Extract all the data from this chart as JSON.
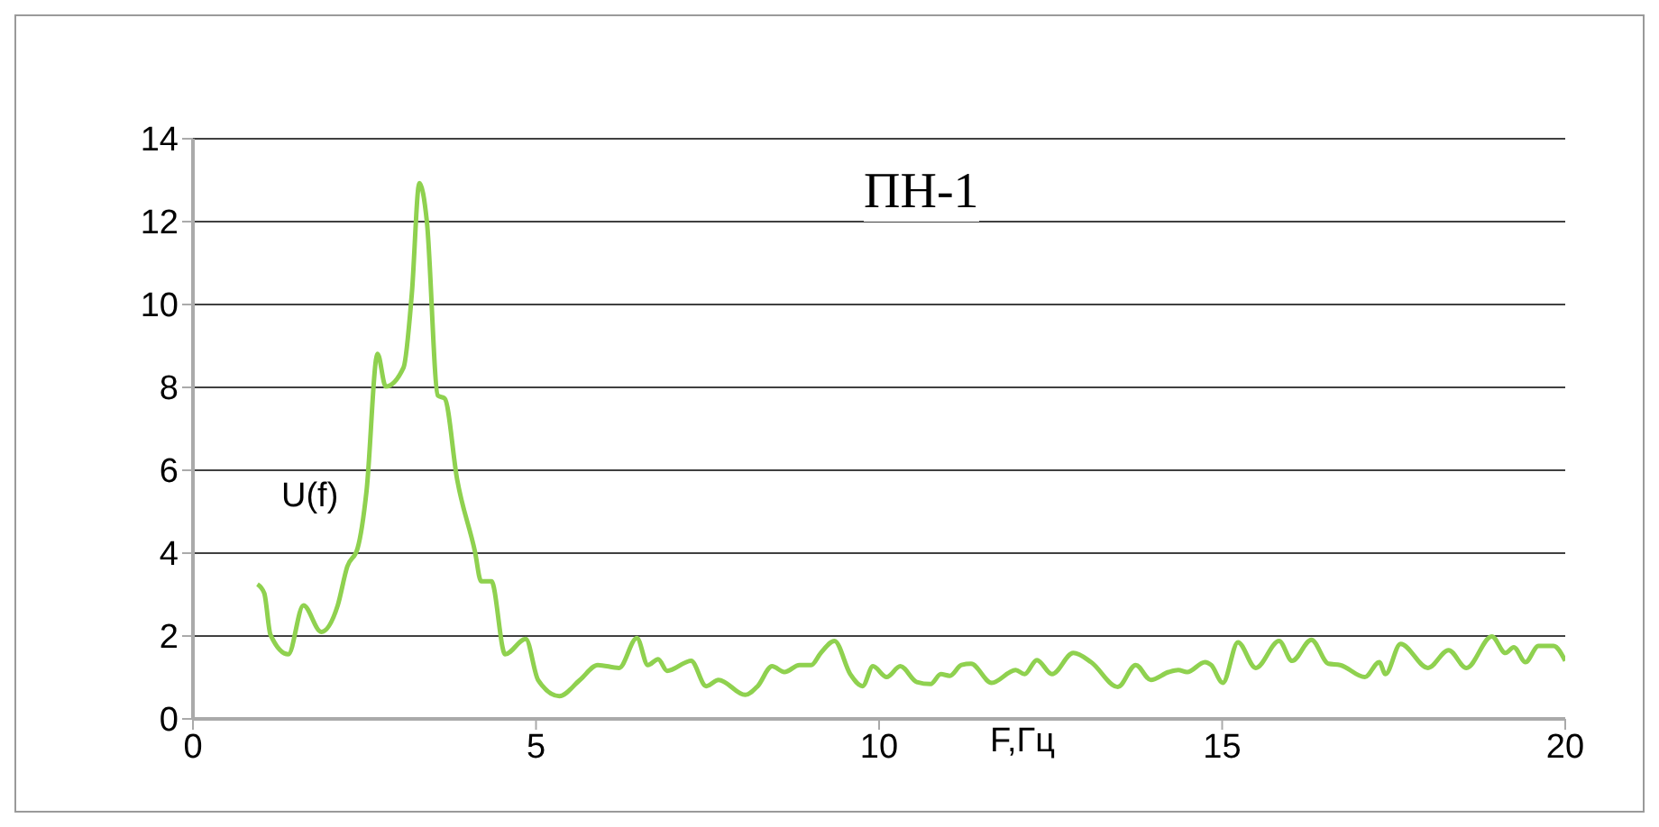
{
  "chart_data": {
    "type": "line",
    "title": "ПН-1",
    "xlabel": "F,Гц",
    "ylabel": "U(f)",
    "x": [
      0.94,
      1.04,
      1.13,
      1.39,
      1.61,
      1.87,
      2.11,
      2.25,
      2.4,
      2.53,
      2.69,
      2.81,
      3.07,
      3.19,
      3.3,
      3.41,
      3.57,
      3.67,
      3.85,
      4.11,
      4.2,
      4.35,
      4.55,
      4.85,
      5.03,
      5.34,
      5.64,
      5.9,
      6.21,
      6.47,
      6.63,
      6.78,
      6.91,
      7.26,
      7.48,
      7.66,
      8.05,
      8.23,
      8.44,
      8.62,
      8.84,
      9.01,
      9.15,
      9.35,
      9.58,
      9.76,
      9.91,
      10.11,
      10.31,
      10.55,
      10.75,
      10.9,
      11.03,
      11.2,
      11.34,
      11.64,
      11.99,
      12.12,
      12.3,
      12.52,
      12.83,
      13.09,
      13.48,
      13.74,
      13.96,
      14.22,
      14.36,
      14.49,
      14.75,
      14.84,
      15.01,
      15.23,
      15.49,
      15.83,
      16.02,
      16.3,
      16.55,
      16.72,
      17.08,
      17.29,
      17.38,
      17.6,
      18.0,
      18.3,
      18.56,
      18.93,
      19.13,
      19.25,
      19.42,
      19.61,
      19.83,
      20.0
    ],
    "series": [
      {
        "color": "#8fd14f",
        "values": [
          3.25,
          3.03,
          2.03,
          1.56,
          2.74,
          2.1,
          2.74,
          3.68,
          4.12,
          5.5,
          8.81,
          8.02,
          8.48,
          10.26,
          12.93,
          11.99,
          7.8,
          7.73,
          5.78,
          4.04,
          3.32,
          3.32,
          1.56,
          1.93,
          0.94,
          0.55,
          0.94,
          1.3,
          1.23,
          1.95,
          1.3,
          1.44,
          1.16,
          1.4,
          0.79,
          0.94,
          0.58,
          0.79,
          1.27,
          1.13,
          1.3,
          1.3,
          1.59,
          1.88,
          1.08,
          0.79,
          1.27,
          1.01,
          1.27,
          0.89,
          0.84,
          1.08,
          1.04,
          1.3,
          1.33,
          0.87,
          1.18,
          1.08,
          1.42,
          1.08,
          1.59,
          1.37,
          0.77,
          1.3,
          0.94,
          1.13,
          1.18,
          1.13,
          1.37,
          1.3,
          0.87,
          1.85,
          1.23,
          1.88,
          1.4,
          1.91,
          1.33,
          1.3,
          1.01,
          1.37,
          1.08,
          1.81,
          1.23,
          1.66,
          1.23,
          1.99,
          1.59,
          1.73,
          1.37,
          1.76,
          1.76,
          1.4
        ]
      }
    ],
    "xlim": [
      0,
      20
    ],
    "xticks": [
      0,
      5,
      10,
      15,
      20
    ],
    "ylim": [
      0,
      14
    ],
    "yticks": [
      0,
      2,
      4,
      6,
      8,
      10,
      12,
      14
    ],
    "grid": "y",
    "marker": "none",
    "line_style": "solid",
    "legend": false
  }
}
